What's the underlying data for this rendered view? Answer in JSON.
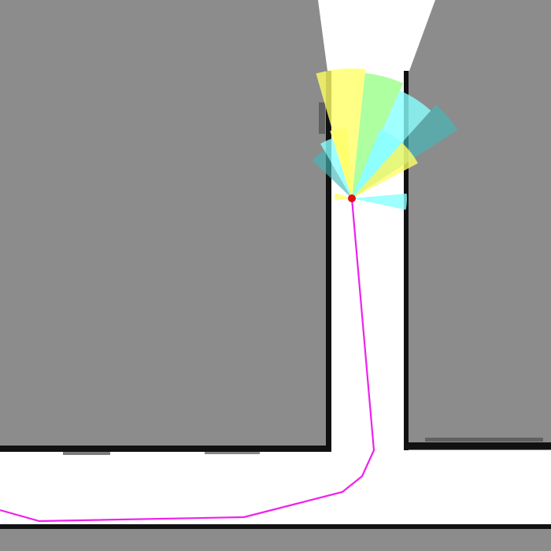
{
  "map": {
    "colors": {
      "unknown": "#8c8c8c",
      "free": "#ffffff",
      "wall": "#111111",
      "path": "#ee22ee",
      "robot": "#e01010",
      "sonar_yellow": "#ffff66",
      "sonar_green": "#99ff88",
      "sonar_cyan": "#88ffff",
      "sonar_teal": "#44b8b8"
    },
    "layers": [
      "unknown-area",
      "free-space",
      "walls",
      "sonar-fan",
      "planned-path",
      "robot"
    ],
    "sonar_beams": [
      {
        "color": "yellow"
      },
      {
        "color": "green"
      },
      {
        "color": "cyan"
      },
      {
        "color": "teal"
      },
      {
        "color": "cyan"
      },
      {
        "color": "yellow"
      },
      {
        "color": "yellow"
      },
      {
        "color": "cyan"
      },
      {
        "color": "teal"
      },
      {
        "color": "yellow"
      }
    ]
  }
}
